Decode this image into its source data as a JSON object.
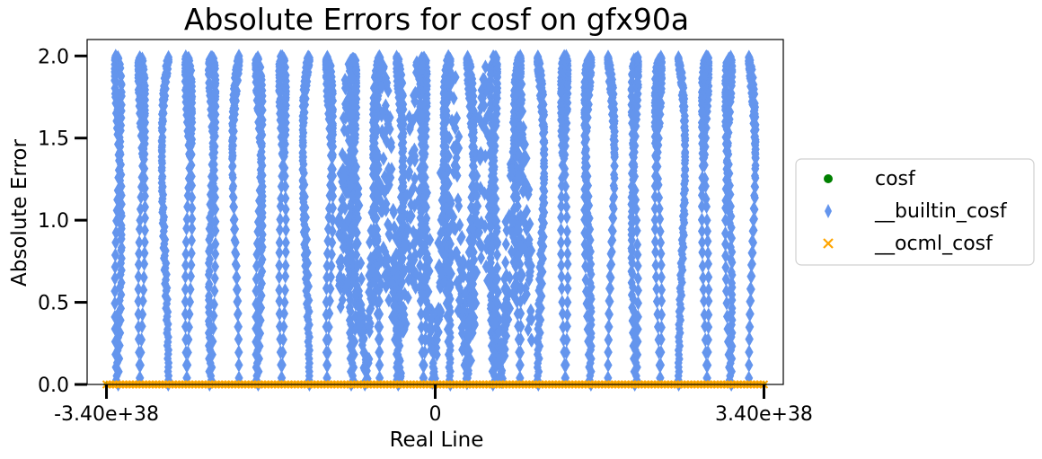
{
  "chart_data": {
    "type": "scatter",
    "title": "Absolute Errors for cosf on gfx90a",
    "xlabel": "Real Line",
    "ylabel": "Absolute Error",
    "xlim": [
      -3.6e+38,
      3.6e+38
    ],
    "ylim": [
      0,
      2.1
    ],
    "x_ticks": [
      -3.4e+38,
      0,
      3.4e+38
    ],
    "x_tick_labels": [
      "-3.40e+38",
      "0",
      "3.40e+38"
    ],
    "y_ticks": [
      0.0,
      0.5,
      1.0,
      1.5,
      2.0
    ],
    "y_tick_labels": [
      "0.0",
      "0.5",
      "1.0",
      "1.5",
      "2.0"
    ],
    "grid": false,
    "legend_position": "right, outside plot",
    "series": [
      {
        "name": "cosf",
        "marker": "circle",
        "color": "#008000",
        "description_values": "near 0 across full range",
        "x": [],
        "y": []
      },
      {
        "name": "__builtin_cosf",
        "marker": "thin_diamond",
        "color": "#6495ED",
        "x": [],
        "y": []
      },
      {
        "name": "__ocml_cosf",
        "marker": "x",
        "color": "#FFA500",
        "x": [],
        "y": []
      }
    ],
    "generated": {
      "builtin_columns": 28,
      "builtin_points_per_column": 120,
      "zero_points": 200
    }
  }
}
